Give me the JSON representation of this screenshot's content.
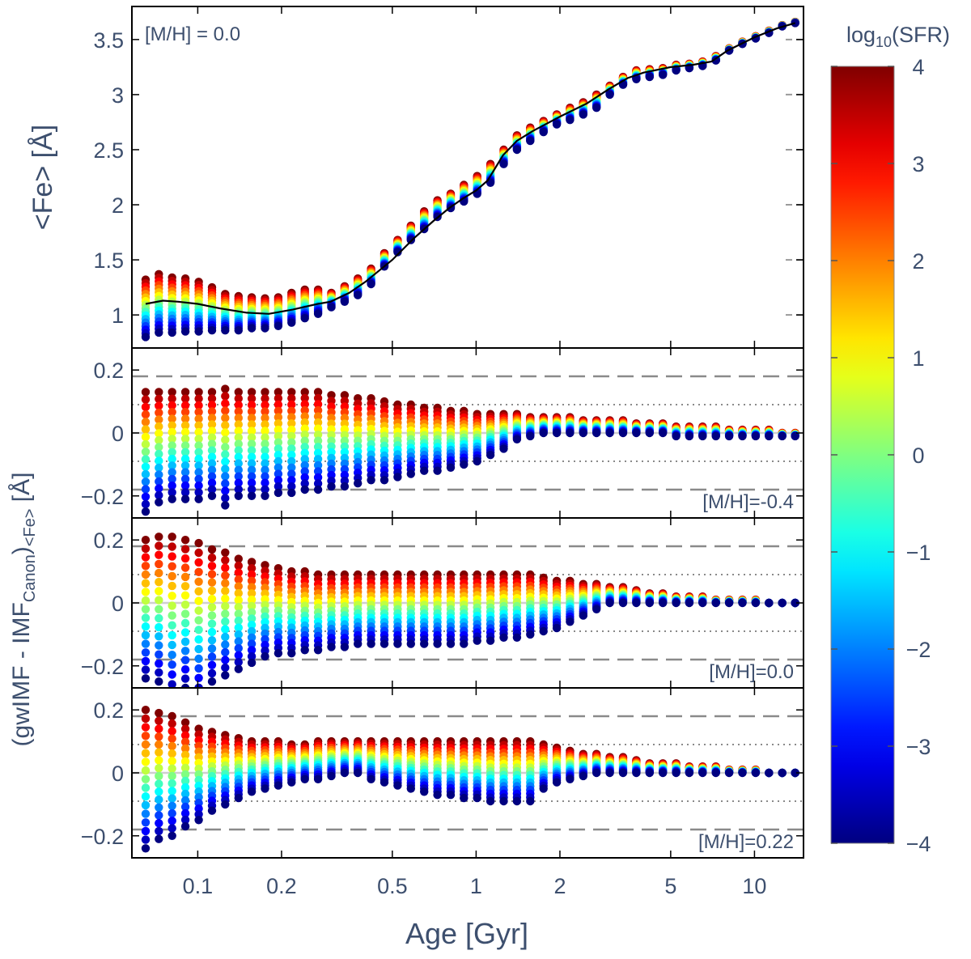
{
  "figure": {
    "xlabel": "Age [Gyr]",
    "xticks": [
      {
        "value": 0.1,
        "label": "0.1"
      },
      {
        "value": 0.2,
        "label": "0.2"
      },
      {
        "value": 0.5,
        "label": "0.5"
      },
      {
        "value": 1,
        "label": "1"
      },
      {
        "value": 2,
        "label": "2"
      },
      {
        "value": 5,
        "label": "5"
      },
      {
        "value": 10,
        "label": "10"
      }
    ],
    "xlim": [
      0.058,
      15
    ],
    "xscale": "log",
    "shared_ylabel": {
      "main": "(gwIMF - IMF",
      "sub1": "Canon",
      "mid": ")",
      "sub2": "<Fe>",
      "end": " [Å]"
    },
    "colorbar": {
      "label_prefix": "log",
      "label_sub": "10",
      "label_suffix": "(SFR)",
      "min": -4,
      "max": 4,
      "ticks": [
        {
          "value": 4,
          "label": "4"
        },
        {
          "value": 3,
          "label": "3"
        },
        {
          "value": 2,
          "label": "2"
        },
        {
          "value": 1,
          "label": "1"
        },
        {
          "value": 0,
          "label": "0"
        },
        {
          "value": -1,
          "label": "−1"
        },
        {
          "value": -2,
          "label": "−2"
        },
        {
          "value": -3,
          "label": "−3"
        },
        {
          "value": -4,
          "label": "−4"
        }
      ],
      "colormap": "jet"
    }
  },
  "chart_data": [
    {
      "type": "scatter",
      "panel": "top",
      "annotation": "[M/H] = 0.0",
      "ylabel": "<Fe> [Å]",
      "ylim": [
        0.7,
        3.8
      ],
      "yticks": [
        {
          "value": 1,
          "label": "1"
        },
        {
          "value": 1.5,
          "label": "1.5"
        },
        {
          "value": 2,
          "label": "2"
        },
        {
          "value": 2.5,
          "label": "2.5"
        },
        {
          "value": 3,
          "label": "3"
        },
        {
          "value": 3.5,
          "label": "3.5"
        }
      ],
      "canonical_curve": {
        "age": [
          0.065,
          0.075,
          0.085,
          0.1,
          0.12,
          0.15,
          0.18,
          0.22,
          0.27,
          0.3,
          0.35,
          0.4,
          0.5,
          0.6,
          0.7,
          0.8,
          0.9,
          1.0,
          1.1,
          1.25,
          1.4,
          1.6,
          2.0,
          2.5,
          3.0,
          3.5,
          4.0,
          5.0,
          6.0,
          7.0,
          8.0,
          10.0,
          12.0,
          14.0
        ],
        "fe": [
          1.1,
          1.13,
          1.12,
          1.1,
          1.06,
          1.02,
          1.01,
          1.05,
          1.1,
          1.12,
          1.2,
          1.3,
          1.5,
          1.7,
          1.85,
          1.97,
          2.06,
          2.13,
          2.22,
          2.45,
          2.58,
          2.67,
          2.8,
          2.92,
          3.05,
          3.15,
          3.2,
          3.25,
          3.27,
          3.3,
          3.4,
          3.52,
          3.6,
          3.65
        ]
      },
      "sfr_sweep": {
        "ages": [
          0.065,
          0.0725,
          0.0809,
          0.0903,
          0.1008,
          0.1125,
          0.1255,
          0.1401,
          0.1563,
          0.1744,
          0.1947,
          0.2172,
          0.2424,
          0.2705,
          0.3019,
          0.3369,
          0.3759,
          0.4195,
          0.4681,
          0.5224,
          0.583,
          0.6506,
          0.726,
          0.8102,
          0.9041,
          1.0089,
          1.1259,
          1.2564,
          1.4021,
          1.5646,
          1.746,
          1.9484,
          2.1743,
          2.4264,
          2.7077,
          3.0216,
          3.3719,
          3.7628,
          4.199,
          4.6858,
          5.2291,
          5.8353,
          6.5118,
          7.2667,
          8.1092,
          9.0493,
          10.0984,
          11.2691,
          12.5756,
          14.0
        ],
        "log_sfr_levels": [
          -4,
          -3.5,
          -3,
          -2.5,
          -2,
          -1.5,
          -1,
          -0.5,
          0,
          0.5,
          1,
          1.5,
          2,
          2.5,
          3,
          3.5,
          4
        ],
        "fe_at_max_sfr": [
          1.32,
          1.37,
          1.34,
          1.33,
          1.3,
          1.25,
          1.19,
          1.17,
          1.16,
          1.15,
          1.16,
          1.2,
          1.23,
          1.23,
          1.2,
          1.26,
          1.33,
          1.42,
          1.56,
          1.68,
          1.81,
          1.94,
          2.04,
          2.1,
          2.18,
          2.26,
          2.37,
          2.5,
          2.63,
          2.7,
          2.76,
          2.82,
          2.88,
          2.93,
          3.0,
          3.08,
          3.16,
          3.22,
          3.23,
          3.24,
          3.27,
          3.28,
          3.3,
          3.35,
          3.42,
          3.48,
          3.53,
          3.58,
          3.63,
          3.66
        ],
        "fe_at_min_sfr": [
          0.8,
          0.84,
          0.84,
          0.85,
          0.85,
          0.86,
          0.86,
          0.86,
          0.88,
          0.88,
          0.9,
          0.93,
          0.97,
          1.01,
          1.07,
          1.12,
          1.18,
          1.28,
          1.44,
          1.57,
          1.68,
          1.78,
          1.89,
          1.97,
          2.03,
          2.1,
          2.2,
          2.37,
          2.5,
          2.58,
          2.66,
          2.73,
          2.77,
          2.82,
          2.88,
          3.0,
          3.09,
          3.14,
          3.16,
          3.18,
          3.22,
          3.24,
          3.26,
          3.31,
          3.4,
          3.46,
          3.51,
          3.56,
          3.62,
          3.65
        ]
      }
    },
    {
      "type": "scatter",
      "panel": "residual",
      "annotation": "[M/H]=-0.4",
      "ylim": [
        -0.27,
        0.27
      ],
      "yticks": [
        {
          "value": 0.2,
          "label": "0.2"
        },
        {
          "value": 0,
          "label": "0"
        },
        {
          "value": -0.2,
          "label": "−0.2"
        }
      ],
      "dashed_lines": [
        0.18,
        -0.18
      ],
      "dotted_lines": [
        0.09,
        -0.09
      ],
      "zero_line": 0,
      "sfr_sweep": {
        "ages": [
          0.065,
          0.0725,
          0.0809,
          0.0903,
          0.1008,
          0.1125,
          0.1255,
          0.1401,
          0.1563,
          0.1744,
          0.1947,
          0.2172,
          0.2424,
          0.2705,
          0.3019,
          0.3369,
          0.3759,
          0.4195,
          0.4681,
          0.5224,
          0.583,
          0.6506,
          0.726,
          0.8102,
          0.9041,
          1.0089,
          1.1259,
          1.2564,
          1.4021,
          1.5646,
          1.746,
          1.9484,
          2.1743,
          2.4264,
          2.7077,
          3.0216,
          3.3719,
          3.7628,
          4.199,
          4.6858,
          5.2291,
          5.8353,
          6.5118,
          7.2667,
          8.1092,
          9.0493,
          10.0984,
          11.2691,
          12.5756,
          14.0
        ],
        "log_sfr_levels": [
          -4,
          -3.5,
          -3,
          -2.5,
          -2,
          -1.5,
          -1,
          -0.5,
          0,
          0.5,
          1,
          1.5,
          2,
          2.5,
          3,
          3.5,
          4
        ],
        "residual_at_max_sfr": [
          0.13,
          0.13,
          0.13,
          0.13,
          0.13,
          0.13,
          0.14,
          0.13,
          0.13,
          0.13,
          0.13,
          0.13,
          0.13,
          0.13,
          0.12,
          0.12,
          0.11,
          0.11,
          0.1,
          0.09,
          0.09,
          0.08,
          0.08,
          0.07,
          0.07,
          0.06,
          0.06,
          0.06,
          0.06,
          0.05,
          0.05,
          0.05,
          0.05,
          0.04,
          0.04,
          0.04,
          0.04,
          0.03,
          0.03,
          0.03,
          0.02,
          0.02,
          0.02,
          0.02,
          0.01,
          0.01,
          0.01,
          0.01,
          0.0,
          0.0
        ],
        "residual_at_min_sfr": [
          -0.25,
          -0.22,
          -0.21,
          -0.21,
          -0.21,
          -0.2,
          -0.23,
          -0.2,
          -0.2,
          -0.2,
          -0.19,
          -0.19,
          -0.18,
          -0.18,
          -0.17,
          -0.17,
          -0.16,
          -0.15,
          -0.15,
          -0.14,
          -0.13,
          -0.12,
          -0.12,
          -0.11,
          -0.1,
          -0.09,
          -0.07,
          -0.05,
          -0.02,
          -0.01,
          0.0,
          0.0,
          0.0,
          0.0,
          0.0,
          0.0,
          0.0,
          0.0,
          0.0,
          0.0,
          -0.01,
          -0.01,
          -0.01,
          -0.01,
          -0.01,
          -0.01,
          -0.01,
          -0.01,
          -0.01,
          -0.01
        ]
      }
    },
    {
      "type": "scatter",
      "panel": "residual",
      "annotation": "[M/H]=0.0",
      "ylim": [
        -0.27,
        0.27
      ],
      "yticks": [
        {
          "value": 0.2,
          "label": "0.2"
        },
        {
          "value": 0,
          "label": "0"
        },
        {
          "value": -0.2,
          "label": "−0.2"
        }
      ],
      "dashed_lines": [
        0.18,
        -0.18
      ],
      "dotted_lines": [
        0.09,
        -0.09
      ],
      "zero_line": 0,
      "sfr_sweep": {
        "ages": [
          0.065,
          0.0725,
          0.0809,
          0.0903,
          0.1008,
          0.1125,
          0.1255,
          0.1401,
          0.1563,
          0.1744,
          0.1947,
          0.2172,
          0.2424,
          0.2705,
          0.3019,
          0.3369,
          0.3759,
          0.4195,
          0.4681,
          0.5224,
          0.583,
          0.6506,
          0.726,
          0.8102,
          0.9041,
          1.0089,
          1.1259,
          1.2564,
          1.4021,
          1.5646,
          1.746,
          1.9484,
          2.1743,
          2.4264,
          2.7077,
          3.0216,
          3.3719,
          3.7628,
          4.199,
          4.6858,
          5.2291,
          5.8353,
          6.5118,
          7.2667,
          8.1092,
          9.0493,
          10.0984,
          11.2691,
          12.5756,
          14.0
        ],
        "log_sfr_levels": [
          -4,
          -3.5,
          -3,
          -2.5,
          -2,
          -1.5,
          -1,
          -0.5,
          0,
          0.5,
          1,
          1.5,
          2,
          2.5,
          3,
          3.5,
          4
        ],
        "residual_at_max_sfr": [
          0.2,
          0.21,
          0.21,
          0.2,
          0.19,
          0.17,
          0.16,
          0.14,
          0.13,
          0.12,
          0.11,
          0.1,
          0.1,
          0.09,
          0.09,
          0.09,
          0.09,
          0.09,
          0.09,
          0.09,
          0.09,
          0.09,
          0.09,
          0.09,
          0.09,
          0.09,
          0.09,
          0.09,
          0.09,
          0.09,
          0.08,
          0.07,
          0.07,
          0.06,
          0.06,
          0.05,
          0.05,
          0.04,
          0.03,
          0.03,
          0.02,
          0.02,
          0.02,
          0.01,
          0.01,
          0.01,
          0.01,
          0.0,
          0.0,
          0.0
        ],
        "residual_at_min_sfr": [
          -0.24,
          -0.25,
          -0.29,
          -0.27,
          -0.3,
          -0.25,
          -0.23,
          -0.21,
          -0.19,
          -0.17,
          -0.16,
          -0.16,
          -0.15,
          -0.15,
          -0.14,
          -0.14,
          -0.13,
          -0.13,
          -0.13,
          -0.13,
          -0.13,
          -0.13,
          -0.13,
          -0.13,
          -0.13,
          -0.12,
          -0.12,
          -0.11,
          -0.11,
          -0.1,
          -0.09,
          -0.08,
          -0.06,
          -0.04,
          -0.02,
          0.0,
          0.0,
          0.0,
          0.0,
          0.0,
          0.0,
          0.0,
          0.0,
          0.0,
          0.0,
          0.0,
          0.0,
          0.0,
          0.0,
          0.0
        ]
      }
    },
    {
      "type": "scatter",
      "panel": "residual",
      "annotation": "[M/H]=0.22",
      "ylim": [
        -0.27,
        0.27
      ],
      "yticks": [
        {
          "value": 0.2,
          "label": "0.2"
        },
        {
          "value": 0,
          "label": "0"
        },
        {
          "value": -0.2,
          "label": "−0.2"
        }
      ],
      "dashed_lines": [
        0.18,
        -0.18
      ],
      "dotted_lines": [
        0.09,
        -0.09
      ],
      "zero_line": 0,
      "sfr_sweep": {
        "ages": [
          0.065,
          0.0725,
          0.0809,
          0.0903,
          0.1008,
          0.1125,
          0.1255,
          0.1401,
          0.1563,
          0.1744,
          0.1947,
          0.2172,
          0.2424,
          0.2705,
          0.3019,
          0.3369,
          0.3759,
          0.4195,
          0.4681,
          0.5224,
          0.583,
          0.6506,
          0.726,
          0.8102,
          0.9041,
          1.0089,
          1.1259,
          1.2564,
          1.4021,
          1.5646,
          1.746,
          1.9484,
          2.1743,
          2.4264,
          2.7077,
          3.0216,
          3.3719,
          3.7628,
          4.199,
          4.6858,
          5.2291,
          5.8353,
          6.5118,
          7.2667,
          8.1092,
          9.0493,
          10.0984,
          11.2691,
          12.5756,
          14.0
        ],
        "log_sfr_levels": [
          -4,
          -3.5,
          -3,
          -2.5,
          -2,
          -1.5,
          -1,
          -0.5,
          0,
          0.5,
          1,
          1.5,
          2,
          2.5,
          3,
          3.5,
          4
        ],
        "residual_at_max_sfr": [
          0.2,
          0.19,
          0.18,
          0.16,
          0.14,
          0.13,
          0.12,
          0.11,
          0.1,
          0.1,
          0.1,
          0.09,
          0.09,
          0.1,
          0.1,
          0.1,
          0.1,
          0.1,
          0.1,
          0.1,
          0.1,
          0.1,
          0.1,
          0.1,
          0.1,
          0.1,
          0.1,
          0.1,
          0.1,
          0.1,
          0.09,
          0.08,
          0.07,
          0.06,
          0.06,
          0.05,
          0.05,
          0.04,
          0.03,
          0.03,
          0.03,
          0.02,
          0.02,
          0.02,
          0.01,
          0.01,
          0.01,
          0.0,
          0.0,
          0.0
        ],
        "residual_at_min_sfr": [
          -0.24,
          -0.21,
          -0.2,
          -0.17,
          -0.15,
          -0.12,
          -0.1,
          -0.08,
          -0.06,
          -0.05,
          -0.04,
          -0.03,
          -0.02,
          -0.02,
          -0.01,
          0.0,
          0.0,
          -0.02,
          -0.03,
          -0.04,
          -0.05,
          -0.06,
          -0.07,
          -0.07,
          -0.08,
          -0.08,
          -0.09,
          -0.09,
          -0.09,
          -0.09,
          -0.05,
          -0.03,
          -0.02,
          -0.01,
          0.0,
          0.0,
          0.0,
          0.0,
          0.0,
          0.0,
          0.0,
          0.0,
          0.0,
          0.0,
          0.0,
          0.0,
          0.0,
          0.0,
          0.0,
          0.0
        ]
      }
    }
  ]
}
